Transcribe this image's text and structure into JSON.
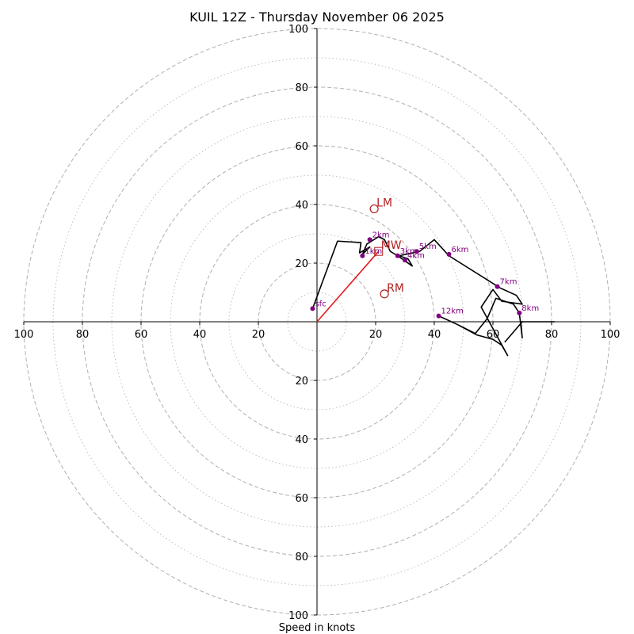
{
  "chart_data": {
    "type": "hodograph",
    "title": "KUIL 12Z - Thursday November 06 2025",
    "xlabel": "Speed in knots",
    "range": [
      -100,
      100
    ],
    "tick_labels": [
      "100",
      "80",
      "60",
      "40",
      "20",
      "20",
      "40",
      "60",
      "80",
      "100"
    ],
    "tick_values": [
      -100,
      -80,
      -60,
      -40,
      -20,
      20,
      40,
      60,
      80,
      100
    ],
    "rings_major": [
      20,
      40,
      60,
      80,
      100
    ],
    "rings_minor": [
      10,
      30,
      50,
      70,
      90
    ],
    "grid": true,
    "trace": [
      [
        -1.5,
        4.5
      ],
      [
        7,
        27.5
      ],
      [
        15,
        27
      ],
      [
        14.5,
        23.5
      ],
      [
        18,
        25.5
      ],
      [
        15.5,
        23
      ],
      [
        17,
        26.5
      ],
      [
        21,
        29
      ],
      [
        23,
        28
      ],
      [
        25,
        24
      ],
      [
        27.5,
        22.5
      ],
      [
        32.5,
        19
      ],
      [
        31,
        21.5
      ],
      [
        28,
        22.5
      ],
      [
        35,
        24
      ],
      [
        40,
        28
      ],
      [
        45,
        22.5
      ],
      [
        62.5,
        11.5
      ],
      [
        68,
        9
      ],
      [
        70,
        6
      ],
      [
        63,
        7
      ],
      [
        60,
        11
      ],
      [
        56,
        5
      ],
      [
        65,
        -11.5
      ],
      [
        63,
        -8
      ],
      [
        60,
        -6
      ],
      [
        54.5,
        -4.5
      ],
      [
        48,
        -1
      ],
      [
        41.5,
        2
      ],
      [
        48,
        -1
      ],
      [
        54,
        -4
      ],
      [
        58,
        1
      ],
      [
        61,
        8
      ],
      [
        67,
        6
      ],
      [
        69,
        3
      ],
      [
        70,
        -5.5
      ],
      [
        69.5,
        0
      ],
      [
        81,
        0
      ],
      [
        70,
        0
      ],
      [
        64,
        -7
      ]
    ],
    "height_markers": [
      {
        "label": "sfc",
        "u": -1.5,
        "v": 4.5
      },
      {
        "label": "1km",
        "u": 15.5,
        "v": 22.5
      },
      {
        "label": "2km",
        "u": 18,
        "v": 28
      },
      {
        "label": "3km",
        "u": 27.5,
        "v": 22.5
      },
      {
        "label": "4km",
        "u": 30,
        "v": 21
      },
      {
        "label": "5km",
        "u": 34,
        "v": 24
      },
      {
        "label": "6km",
        "u": 45,
        "v": 23
      },
      {
        "label": "7km",
        "u": 61.5,
        "v": 12
      },
      {
        "label": "8km",
        "u": 69,
        "v": 3
      },
      {
        "label": "12km",
        "u": 41.5,
        "v": 2
      }
    ],
    "storm_motion": [
      {
        "label": "LM",
        "u": 19.5,
        "v": 38.5,
        "shape": "circle"
      },
      {
        "label": "MW",
        "u": 21,
        "v": 24,
        "shape": "square"
      },
      {
        "label": "RM",
        "u": 23,
        "v": 9.5,
        "shape": "circle"
      }
    ],
    "mean_wind_vector": {
      "u": 21,
      "v": 24
    },
    "colors": {
      "trace": "#000000",
      "markers": "#800080",
      "storm": "#b22222",
      "vector": "#e41a1c",
      "grid": "#b0b0b0"
    }
  }
}
